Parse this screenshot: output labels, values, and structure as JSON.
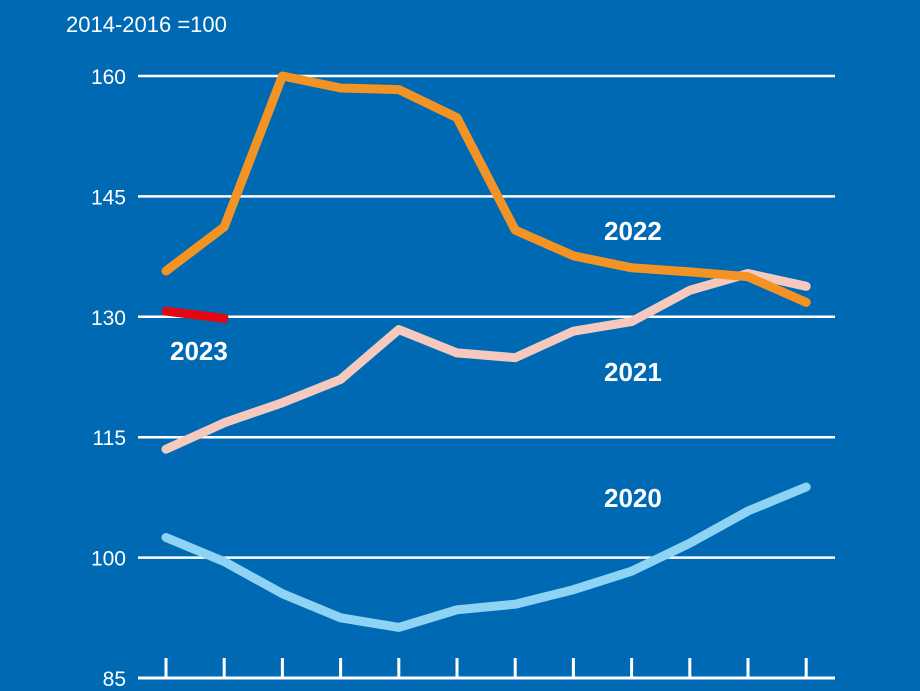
{
  "chart_data": {
    "type": "line",
    "unit_label": "2014-2016 =100",
    "ylim": [
      85,
      160
    ],
    "yticks": [
      85,
      100,
      115,
      130,
      145,
      160
    ],
    "ytick_labels": [
      "85",
      "100",
      "115",
      "130",
      "145",
      "160"
    ],
    "x_count": 12,
    "grid": true,
    "background_color": "#0069b4",
    "series": [
      {
        "name": "2020",
        "color": "#8fd3f4",
        "values": [
          102.5,
          99.5,
          95.5,
          92.5,
          91.3,
          93.5,
          94.2,
          96,
          98.3,
          101.8,
          105.8,
          108.8
        ]
      },
      {
        "name": "2021",
        "color": "#f6c9be",
        "values": [
          113.5,
          116.8,
          119.3,
          122.2,
          128.4,
          125.5,
          124.9,
          128.2,
          129.4,
          133.3,
          135.4,
          133.8
        ]
      },
      {
        "name": "2022",
        "color": "#f39323",
        "values": [
          135.7,
          141.2,
          160,
          158.5,
          158.3,
          154.8,
          140.8,
          137.6,
          136.1,
          135.6,
          135,
          131.8
        ]
      },
      {
        "name": "2023",
        "color": "#e30613",
        "values": [
          130.7,
          129.8
        ]
      }
    ]
  }
}
